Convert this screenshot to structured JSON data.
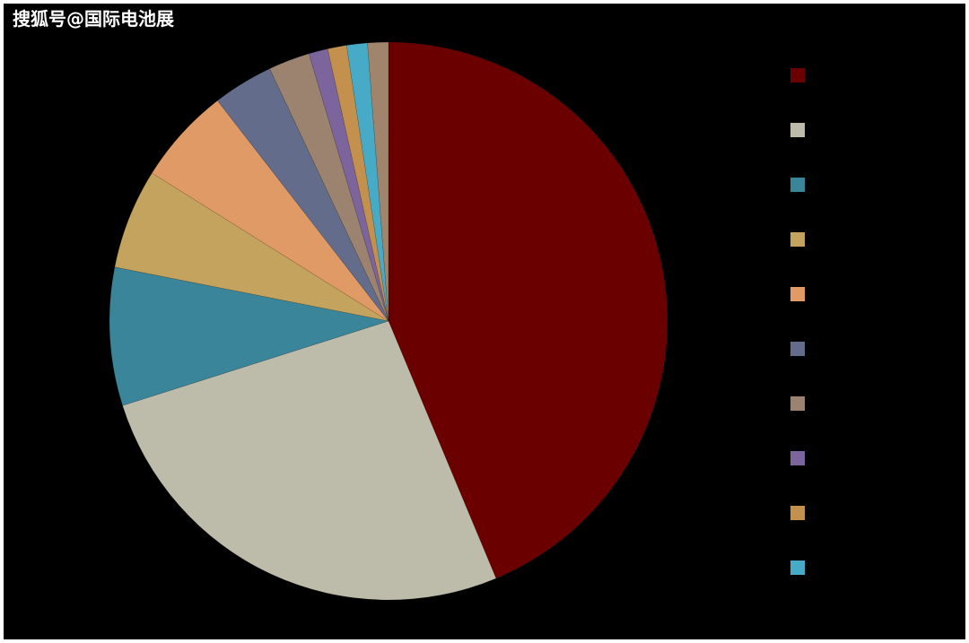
{
  "watermark": "搜狐号@国际电池展",
  "chart_data": {
    "type": "pie",
    "categories": [
      null,
      null,
      null,
      null,
      null,
      null,
      null,
      null,
      null,
      null,
      null
    ],
    "values": [
      43.7,
      26.4,
      8.0,
      5.8,
      5.6,
      3.5,
      2.4,
      1.1,
      1.1,
      1.2,
      1.2
    ],
    "colors": [
      "#6b0000",
      "#bdbcab",
      "#3a8599",
      "#c4a35e",
      "#e09a65",
      "#636c8a",
      "#9c8370",
      "#7c649c",
      "#c3904e",
      "#47abc8",
      "#a0846c"
    ],
    "legend": "right"
  }
}
